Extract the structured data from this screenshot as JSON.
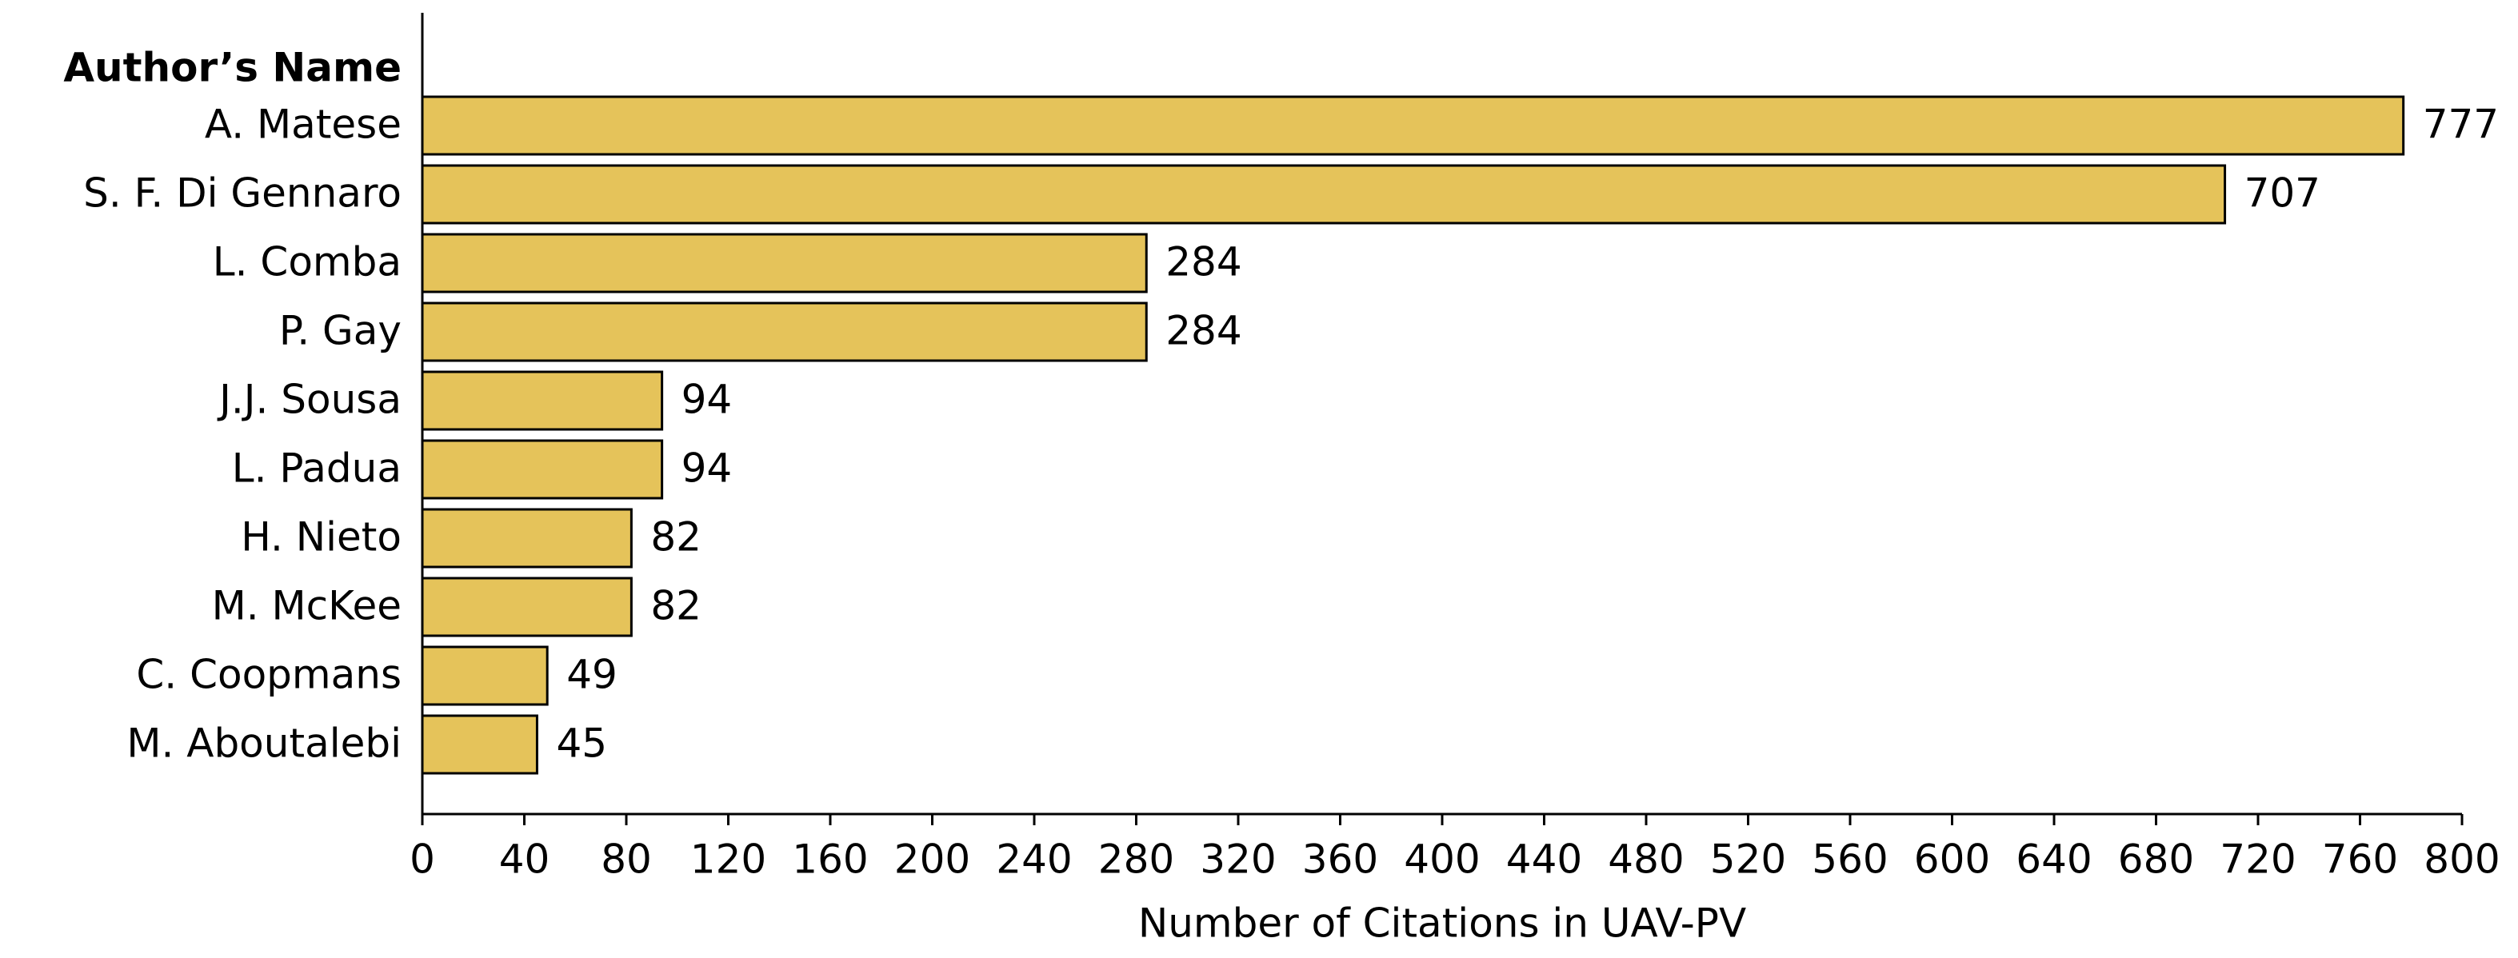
{
  "chart_data": {
    "type": "bar",
    "orientation": "horizontal",
    "y_axis_label": "Author’s Name",
    "x_axis_label": "Number of Citations in UAV-PV",
    "categories": [
      "A. Matese",
      "S. F. Di Gennaro",
      "L. Comba",
      "P. Gay",
      "J.J. Sousa",
      "L. Padua",
      "H. Nieto",
      "M. McKee",
      "C. Coopmans",
      "M. Aboutalebi"
    ],
    "values": [
      777,
      707,
      284,
      284,
      94,
      94,
      82,
      82,
      49,
      45
    ],
    "color": "#e5c35a",
    "xlim": [
      0,
      800
    ],
    "xticks": [
      0,
      40,
      80,
      120,
      160,
      200,
      240,
      280,
      320,
      360,
      400,
      440,
      480,
      520,
      560,
      600,
      640,
      680,
      720,
      760,
      800
    ]
  }
}
